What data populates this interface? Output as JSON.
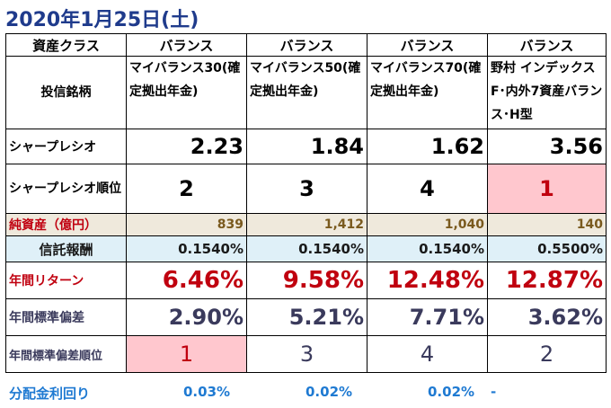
{
  "title": "2020年1月25日(土)",
  "labels": {
    "asset_class": "資産クラス",
    "fund_name": "投信銘柄",
    "sharpe": "シャープレシオ",
    "sharpe_rank": "シャープレシオ順位",
    "net_assets": "純資産（億円）",
    "fee": "信託報酬",
    "annual_return": "年間リターン",
    "annual_sd": "年間標準偏差",
    "annual_sd_rank": "年間標準偏差順位",
    "dividend_yield": "分配金利回り"
  },
  "funds": [
    {
      "asset_class": "バランス",
      "name": "マイバランス30(確定拠出年金)",
      "sharpe": "2.23",
      "sharpe_rank": "2",
      "net_assets": "839",
      "fee": "0.1540%",
      "annual_return": "6.46%",
      "annual_sd": "2.90%",
      "annual_sd_rank": "1",
      "dividend_yield": "0.03%"
    },
    {
      "asset_class": "バランス",
      "name": "マイバランス50(確定拠出年金)",
      "sharpe": "1.84",
      "sharpe_rank": "3",
      "net_assets": "1,412",
      "fee": "0.1540%",
      "annual_return": "9.58%",
      "annual_sd": "5.21%",
      "annual_sd_rank": "3",
      "dividend_yield": "0.02%"
    },
    {
      "asset_class": "バランス",
      "name": "マイバランス70(確定拠出年金)",
      "sharpe": "1.62",
      "sharpe_rank": "4",
      "net_assets": "1,040",
      "fee": "0.1540%",
      "annual_return": "12.48%",
      "annual_sd": "7.71%",
      "annual_sd_rank": "4",
      "dividend_yield": "0.02%"
    },
    {
      "asset_class": "バランス",
      "name": "野村 インデックスF･内外7資産バランス･H型",
      "sharpe": "3.56",
      "sharpe_rank": "1",
      "net_assets": "140",
      "fee": "0.5500%",
      "annual_return": "12.87%",
      "annual_sd": "3.62%",
      "annual_sd_rank": "2",
      "dividend_yield": "-"
    }
  ],
  "colors": {
    "title": "#1f3b8c",
    "highlight_bg": "#ffc7ce",
    "return_red": "#c0000f",
    "yield_blue": "#1f7ad2",
    "assets_bg": "#efe9dc",
    "fee_bg": "#dff0f8"
  }
}
